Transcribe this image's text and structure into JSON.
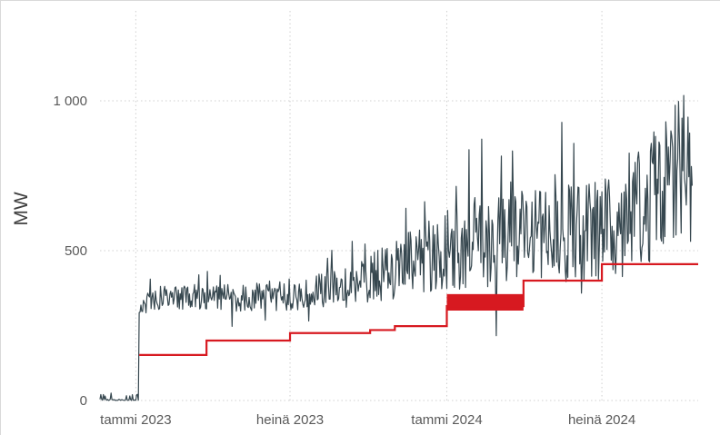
{
  "chart_data": {
    "type": "line",
    "title": "",
    "xlabel": "",
    "ylabel": "MW",
    "ylim": [
      0,
      1300
    ],
    "xlim": [
      "2022-11-20",
      "2024-10-22"
    ],
    "grid": true,
    "yticks": [
      {
        "value": 0,
        "label": "0"
      },
      {
        "value": 500,
        "label": "500"
      },
      {
        "value": 1000,
        "label": "1 000"
      }
    ],
    "xticks": [
      {
        "date": "2023-01-01",
        "label": "tammi 2023"
      },
      {
        "date": "2023-07-01",
        "label": "heinä 2023"
      },
      {
        "date": "2024-01-01",
        "label": "tammi 2024"
      },
      {
        "date": "2024-07-01",
        "label": "heinä 2024"
      }
    ],
    "series": [
      {
        "color": "#36474f",
        "style": "daily-noisy",
        "points": [
          [
            "2022-11-20",
            0
          ],
          [
            "2022-12-20",
            10
          ],
          [
            "2023-01-02",
            5
          ],
          [
            "2023-01-05",
            320
          ],
          [
            "2023-02-01",
            340
          ],
          [
            "2023-03-01",
            350
          ],
          [
            "2023-04-01",
            345
          ],
          [
            "2023-05-01",
            345
          ],
          [
            "2023-06-01",
            350
          ],
          [
            "2023-07-01",
            345
          ],
          [
            "2023-08-01",
            360
          ],
          [
            "2023-09-01",
            380
          ],
          [
            "2023-10-01",
            410
          ],
          [
            "2023-11-01",
            440
          ],
          [
            "2023-12-01",
            470
          ],
          [
            "2024-01-01",
            500
          ],
          [
            "2024-02-01",
            520
          ],
          [
            "2024-03-01",
            530
          ],
          [
            "2024-04-01",
            550
          ],
          [
            "2024-05-01",
            560
          ],
          [
            "2024-06-01",
            570
          ],
          [
            "2024-07-01",
            560
          ],
          [
            "2024-08-01",
            600
          ],
          [
            "2024-09-01",
            680
          ],
          [
            "2024-10-01",
            760
          ],
          [
            "2024-10-15",
            720
          ]
        ]
      },
      {
        "color": "#d71920",
        "style": "step",
        "steps": [
          [
            "2023-01-05",
            152
          ],
          [
            "2023-03-25",
            200
          ],
          [
            "2023-07-01",
            225
          ],
          [
            "2023-10-03",
            235
          ],
          [
            "2023-11-01",
            248
          ],
          [
            "2024-01-01",
            315
          ],
          [
            "2024-03-31",
            400
          ],
          [
            "2024-07-01",
            455
          ],
          [
            "2024-10-22",
            455
          ]
        ],
        "bands": [
          {
            "from": "2024-01-01",
            "to": "2024-03-31",
            "low": 300,
            "high": 355
          }
        ]
      }
    ]
  }
}
